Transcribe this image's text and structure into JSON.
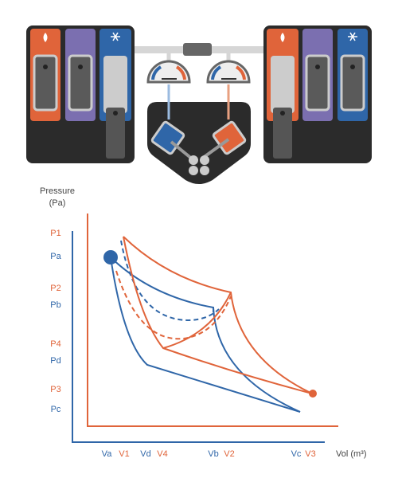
{
  "axis": {
    "y_title": "Pressure",
    "y_unit": "(Pa)",
    "x_title": "Vol (m³)"
  },
  "pressure_labels": [
    "P1",
    "Pa",
    "P2",
    "Pb",
    "P4",
    "Pd",
    "P3",
    "Pc"
  ],
  "volume_labels": [
    "Va",
    "V1",
    "Vd",
    "V4",
    "Vb",
    "V2",
    "Vc",
    "V3"
  ]
}
